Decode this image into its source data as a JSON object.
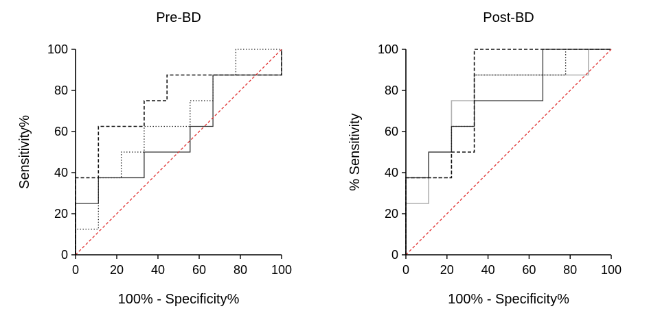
{
  "chart_data": [
    {
      "type": "line",
      "title": "Pre-BD",
      "xlabel": "100% - Specificity%",
      "ylabel": "Sensitivity%",
      "xlim": [
        0,
        100
      ],
      "ylim": [
        0,
        100
      ],
      "xticks": [
        "0",
        "20",
        "40",
        "60",
        "80",
        "100"
      ],
      "yticks": [
        "0",
        "20",
        "40",
        "60",
        "80",
        "100"
      ],
      "series": [
        {
          "name": "solid",
          "style": "solid",
          "color": "#333333",
          "x": [
            0,
            0,
            11.1,
            11.1,
            33.3,
            33.3,
            55.6,
            55.6,
            66.7,
            66.7,
            100,
            100
          ],
          "y": [
            0,
            25,
            25,
            37.5,
            37.5,
            50,
            50,
            62.5,
            62.5,
            87.5,
            87.5,
            100
          ]
        },
        {
          "name": "dotted",
          "style": "dotted",
          "color": "#222222",
          "x": [
            0,
            0,
            11.1,
            11.1,
            22.2,
            22.2,
            33.3,
            33.3,
            55.6,
            55.6,
            66.7,
            66.7,
            77.8,
            77.8,
            100,
            100
          ],
          "y": [
            0,
            12.5,
            12.5,
            37.5,
            37.5,
            50,
            50,
            62.5,
            62.5,
            75,
            75,
            87.5,
            87.5,
            100,
            100,
            100
          ]
        },
        {
          "name": "dashed",
          "style": "dashed",
          "color": "#111111",
          "x": [
            0,
            0,
            11.1,
            11.1,
            33.3,
            33.3,
            44.4,
            44.4,
            100,
            100
          ],
          "y": [
            0,
            37.5,
            37.5,
            62.5,
            62.5,
            75,
            75,
            87.5,
            87.5,
            100
          ]
        },
        {
          "name": "reference",
          "style": "reference",
          "color": "#e03030",
          "x": [
            0,
            100
          ],
          "y": [
            0,
            100
          ]
        }
      ]
    },
    {
      "type": "line",
      "title": "Post-BD",
      "xlabel": "100% - Specificity%",
      "ylabel": "% Sensitivity",
      "xlim": [
        0,
        100
      ],
      "ylim": [
        0,
        100
      ],
      "xticks": [
        "0",
        "20",
        "40",
        "60",
        "80",
        "100"
      ],
      "yticks": [
        "0",
        "20",
        "40",
        "60",
        "80",
        "100"
      ],
      "series": [
        {
          "name": "gray",
          "style": "gray",
          "color": "#b0b0b0",
          "x": [
            0,
            0,
            11.1,
            11.1,
            22.2,
            22.2,
            33.3,
            33.3,
            88.9,
            88.9,
            100
          ],
          "y": [
            0,
            25,
            25,
            50,
            50,
            75,
            75,
            87.5,
            87.5,
            100,
            100
          ]
        },
        {
          "name": "solid",
          "style": "solid",
          "color": "#333333",
          "x": [
            0,
            0,
            11.1,
            11.1,
            22.2,
            22.2,
            33.3,
            33.3,
            66.7,
            66.7,
            100
          ],
          "y": [
            0,
            37.5,
            37.5,
            50,
            50,
            62.5,
            62.5,
            75,
            75,
            100,
            100
          ]
        },
        {
          "name": "dotted",
          "style": "dotted",
          "color": "#222222",
          "x": [
            0,
            0,
            22.2,
            22.2,
            33.3,
            33.3,
            77.8,
            77.8,
            100
          ],
          "y": [
            0,
            37.5,
            37.5,
            62.5,
            62.5,
            87.5,
            87.5,
            100,
            100
          ]
        },
        {
          "name": "dashed",
          "style": "dashed",
          "color": "#111111",
          "x": [
            0,
            0,
            22.2,
            22.2,
            33.3,
            33.3,
            100
          ],
          "y": [
            0,
            37.5,
            37.5,
            50,
            50,
            100,
            100
          ]
        },
        {
          "name": "reference",
          "style": "reference",
          "color": "#e03030",
          "x": [
            0,
            100
          ],
          "y": [
            0,
            100
          ]
        }
      ]
    }
  ]
}
